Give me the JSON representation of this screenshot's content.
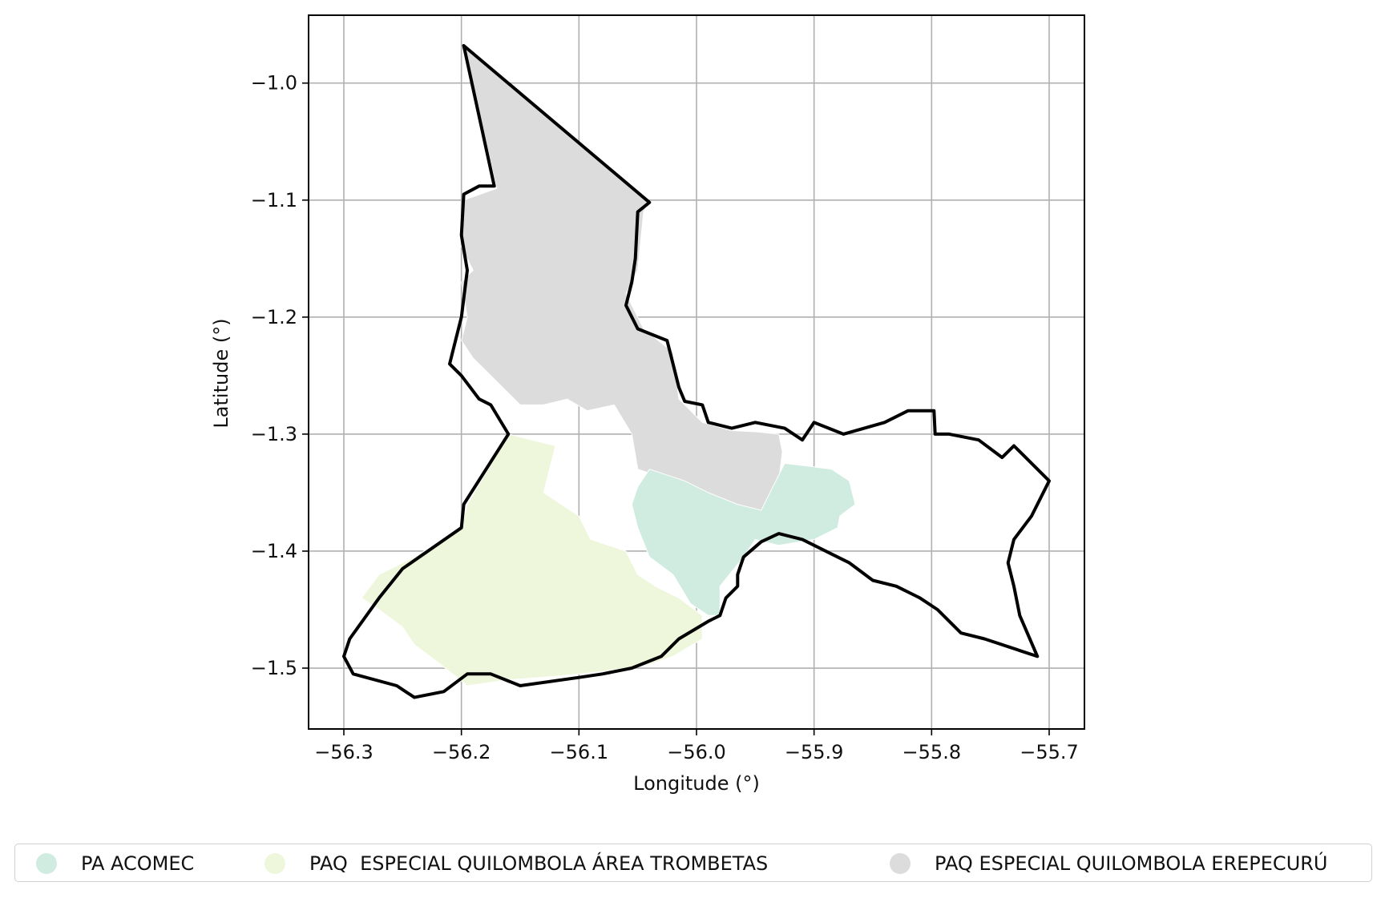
{
  "axes": {
    "xlabel": "Longitude (°)",
    "ylabel": "Latitude (°)",
    "xlim": [
      -56.33,
      -55.67
    ],
    "ylim": [
      -1.552,
      -0.942
    ],
    "xticks": [
      -56.3,
      -56.2,
      -56.1,
      -56.0,
      -55.9,
      -55.8,
      -55.7
    ],
    "xtick_labels": [
      "−56.3",
      "−56.2",
      "−56.1",
      "−56.0",
      "−55.9",
      "−55.8",
      "−55.7"
    ],
    "yticks": [
      -1.0,
      -1.1,
      -1.2,
      -1.3,
      -1.4,
      -1.5
    ],
    "ytick_labels": [
      "−1.0",
      "−1.1",
      "−1.2",
      "−1.3",
      "−1.4",
      "−1.5"
    ],
    "grid": true
  },
  "legend": {
    "placement": "bottom",
    "items": [
      {
        "label": "PA ACOMEC",
        "color": "#d0ece0"
      },
      {
        "label": "PAQ  ESPECIAL QUILOMBOLA ÁREA TROMBETAS",
        "color": "#eef7dc"
      },
      {
        "label": "PAQ ESPECIAL QUILOMBOLA EREPECURÚ",
        "color": "#dcdcdc"
      }
    ]
  },
  "regions": [
    {
      "name": "PAQ ESPECIAL QUILOMBOLA EREPECURÚ",
      "color": "#dcdcdc",
      "coords": [
        [
          -56.198,
          -0.968
        ],
        [
          -56.04,
          -1.102
        ],
        [
          -56.045,
          -1.11
        ],
        [
          -56.05,
          -1.16
        ],
        [
          -56.06,
          -1.18
        ],
        [
          -56.045,
          -1.21
        ],
        [
          -56.02,
          -1.23
        ],
        [
          -56.015,
          -1.27
        ],
        [
          -55.995,
          -1.29
        ],
        [
          -55.97,
          -1.297
        ],
        [
          -55.95,
          -1.298
        ],
        [
          -55.93,
          -1.3
        ],
        [
          -55.927,
          -1.315
        ],
        [
          -55.93,
          -1.34
        ],
        [
          -55.94,
          -1.36
        ],
        [
          -55.95,
          -1.38
        ],
        [
          -55.975,
          -1.37
        ],
        [
          -55.995,
          -1.36
        ],
        [
          -56.02,
          -1.34
        ],
        [
          -56.05,
          -1.33
        ],
        [
          -56.055,
          -1.3
        ],
        [
          -56.07,
          -1.275
        ],
        [
          -56.093,
          -1.28
        ],
        [
          -56.11,
          -1.27
        ],
        [
          -56.13,
          -1.275
        ],
        [
          -56.15,
          -1.275
        ],
        [
          -56.165,
          -1.26
        ],
        [
          -56.175,
          -1.25
        ],
        [
          -56.19,
          -1.235
        ],
        [
          -56.2,
          -1.22
        ],
        [
          -56.195,
          -1.2
        ],
        [
          -56.2,
          -1.17
        ],
        [
          -56.19,
          -1.16
        ],
        [
          -56.2,
          -1.14
        ],
        [
          -56.198,
          -1.1
        ],
        [
          -56.17,
          -1.09
        ],
        [
          -56.198,
          -0.968
        ]
      ]
    },
    {
      "name": "PAQ  ESPECIAL QUILOMBOLA ÁREA TROMBETAS",
      "color": "#eef7dc",
      "coords": [
        [
          -56.16,
          -1.3
        ],
        [
          -56.12,
          -1.31
        ],
        [
          -56.13,
          -1.35
        ],
        [
          -56.1,
          -1.37
        ],
        [
          -56.09,
          -1.39
        ],
        [
          -56.06,
          -1.4
        ],
        [
          -56.05,
          -1.42
        ],
        [
          -56.035,
          -1.43
        ],
        [
          -56.015,
          -1.44
        ],
        [
          -55.995,
          -1.455
        ],
        [
          -55.995,
          -1.475
        ],
        [
          -56.02,
          -1.49
        ],
        [
          -56.04,
          -1.497
        ],
        [
          -56.08,
          -1.503
        ],
        [
          -56.12,
          -1.507
        ],
        [
          -56.16,
          -1.51
        ],
        [
          -56.195,
          -1.515
        ],
        [
          -56.22,
          -1.495
        ],
        [
          -56.24,
          -1.48
        ],
        [
          -56.25,
          -1.465
        ],
        [
          -56.27,
          -1.45
        ],
        [
          -56.285,
          -1.44
        ],
        [
          -56.27,
          -1.42
        ],
        [
          -56.24,
          -1.405
        ],
        [
          -56.2,
          -1.38
        ],
        [
          -56.195,
          -1.36
        ],
        [
          -56.16,
          -1.3
        ]
      ]
    },
    {
      "name": "PA ACOMEC",
      "color": "#d0ece0",
      "coords": [
        [
          -56.04,
          -1.33
        ],
        [
          -56.01,
          -1.34
        ],
        [
          -55.99,
          -1.35
        ],
        [
          -55.965,
          -1.36
        ],
        [
          -55.945,
          -1.365
        ],
        [
          -55.935,
          -1.345
        ],
        [
          -55.925,
          -1.325
        ],
        [
          -55.9,
          -1.328
        ],
        [
          -55.885,
          -1.33
        ],
        [
          -55.87,
          -1.34
        ],
        [
          -55.865,
          -1.36
        ],
        [
          -55.878,
          -1.37
        ],
        [
          -55.88,
          -1.38
        ],
        [
          -55.9,
          -1.39
        ],
        [
          -55.93,
          -1.395
        ],
        [
          -55.95,
          -1.39
        ],
        [
          -55.96,
          -1.405
        ],
        [
          -55.98,
          -1.43
        ],
        [
          -55.98,
          -1.455
        ],
        [
          -55.99,
          -1.455
        ],
        [
          -56.005,
          -1.445
        ],
        [
          -56.02,
          -1.42
        ],
        [
          -56.04,
          -1.405
        ],
        [
          -56.05,
          -1.38
        ],
        [
          -56.055,
          -1.36
        ],
        [
          -56.05,
          -1.345
        ],
        [
          -56.04,
          -1.33
        ]
      ]
    }
  ],
  "boundary": {
    "color": "#000000",
    "coords": [
      [
        -56.198,
        -0.968
      ],
      [
        -56.04,
        -1.102
      ],
      [
        -56.05,
        -1.11
      ],
      [
        -56.052,
        -1.15
      ],
      [
        -56.055,
        -1.17
      ],
      [
        -56.06,
        -1.19
      ],
      [
        -56.05,
        -1.21
      ],
      [
        -56.025,
        -1.22
      ],
      [
        -56.02,
        -1.24
      ],
      [
        -56.015,
        -1.26
      ],
      [
        -56.01,
        -1.272
      ],
      [
        -55.995,
        -1.275
      ],
      [
        -55.99,
        -1.29
      ],
      [
        -55.97,
        -1.295
      ],
      [
        -55.95,
        -1.29
      ],
      [
        -55.925,
        -1.295
      ],
      [
        -55.91,
        -1.305
      ],
      [
        -55.9,
        -1.29
      ],
      [
        -55.875,
        -1.3
      ],
      [
        -55.84,
        -1.29
      ],
      [
        -55.82,
        -1.28
      ],
      [
        -55.798,
        -1.28
      ],
      [
        -55.797,
        -1.3
      ],
      [
        -55.785,
        -1.3
      ],
      [
        -55.76,
        -1.305
      ],
      [
        -55.74,
        -1.32
      ],
      [
        -55.73,
        -1.31
      ],
      [
        -55.72,
        -1.32
      ],
      [
        -55.7,
        -1.34
      ],
      [
        -55.715,
        -1.37
      ],
      [
        -55.73,
        -1.39
      ],
      [
        -55.735,
        -1.41
      ],
      [
        -55.73,
        -1.43
      ],
      [
        -55.725,
        -1.455
      ],
      [
        -55.71,
        -1.49
      ],
      [
        -55.755,
        -1.475
      ],
      [
        -55.775,
        -1.47
      ],
      [
        -55.785,
        -1.46
      ],
      [
        -55.795,
        -1.45
      ],
      [
        -55.81,
        -1.44
      ],
      [
        -55.83,
        -1.43
      ],
      [
        -55.85,
        -1.425
      ],
      [
        -55.87,
        -1.41
      ],
      [
        -55.88,
        -1.405
      ],
      [
        -55.91,
        -1.39
      ],
      [
        -55.93,
        -1.385
      ],
      [
        -55.945,
        -1.392
      ],
      [
        -55.96,
        -1.405
      ],
      [
        -55.965,
        -1.42
      ],
      [
        -55.965,
        -1.43
      ],
      [
        -55.975,
        -1.44
      ],
      [
        -55.98,
        -1.455
      ],
      [
        -55.99,
        -1.46
      ],
      [
        -56.015,
        -1.475
      ],
      [
        -56.03,
        -1.49
      ],
      [
        -56.055,
        -1.5
      ],
      [
        -56.08,
        -1.505
      ],
      [
        -56.1,
        -1.508
      ],
      [
        -56.15,
        -1.515
      ],
      [
        -56.175,
        -1.505
      ],
      [
        -56.195,
        -1.505
      ],
      [
        -56.215,
        -1.52
      ],
      [
        -56.24,
        -1.525
      ],
      [
        -56.255,
        -1.515
      ],
      [
        -56.292,
        -1.505
      ],
      [
        -56.3,
        -1.49
      ],
      [
        -56.295,
        -1.475
      ],
      [
        -56.27,
        -1.44
      ],
      [
        -56.25,
        -1.415
      ],
      [
        -56.2,
        -1.38
      ],
      [
        -56.198,
        -1.36
      ],
      [
        -56.16,
        -1.3
      ],
      [
        -56.175,
        -1.275
      ],
      [
        -56.185,
        -1.27
      ],
      [
        -56.2,
        -1.25
      ],
      [
        -56.21,
        -1.24
      ],
      [
        -56.205,
        -1.22
      ],
      [
        -56.2,
        -1.2
      ],
      [
        -56.195,
        -1.16
      ],
      [
        -56.2,
        -1.13
      ],
      [
        -56.198,
        -1.095
      ],
      [
        -56.185,
        -1.088
      ],
      [
        -56.172,
        -1.088
      ],
      [
        -56.198,
        -0.968
      ]
    ]
  }
}
